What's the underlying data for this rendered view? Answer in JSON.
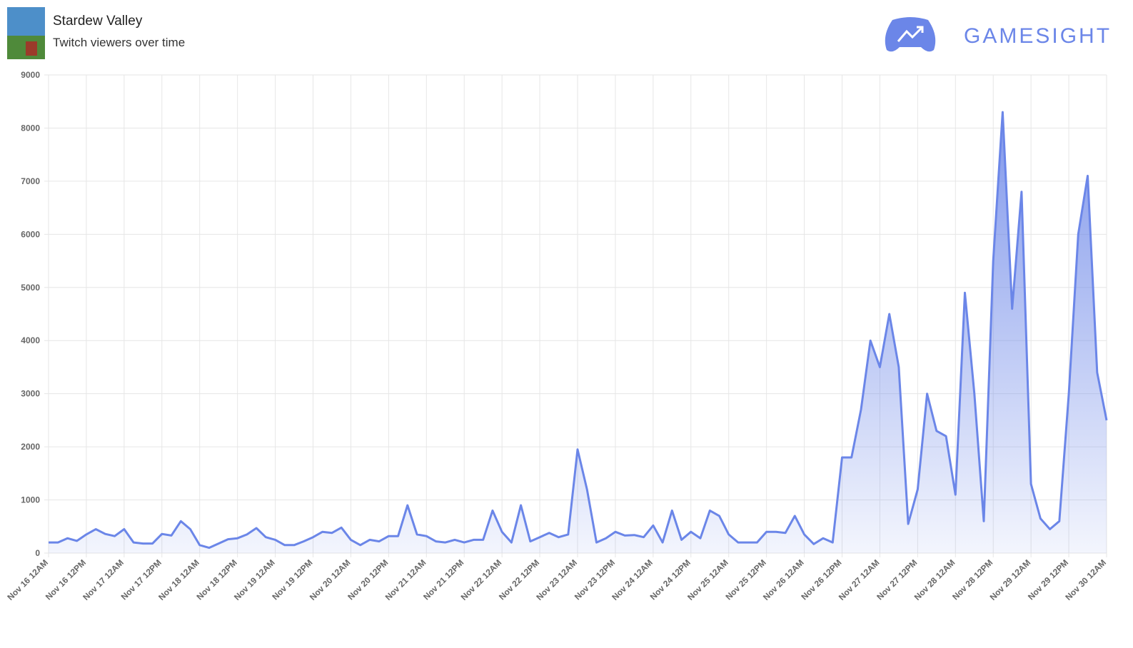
{
  "header": {
    "title": "Stardew Valley",
    "subtitle": "Twitch viewers over time",
    "logo": "GAMESIGHT"
  },
  "chart_data": {
    "type": "area",
    "color": "#6b86e8",
    "categories": [
      "Nov 16 12AM",
      null,
      null,
      null,
      "Nov 16 12PM",
      null,
      null,
      null,
      "Nov 17 12AM",
      null,
      null,
      null,
      "Nov 17 12PM",
      null,
      null,
      null,
      "Nov 18 12AM",
      null,
      null,
      null,
      "Nov 18 12PM",
      null,
      null,
      null,
      "Nov 19 12AM",
      null,
      null,
      null,
      "Nov 19 12PM",
      null,
      null,
      null,
      "Nov 20 12AM",
      null,
      null,
      null,
      "Nov 20 12PM",
      null,
      null,
      null,
      "Nov 21 12AM",
      null,
      null,
      null,
      "Nov 21 12PM",
      null,
      null,
      null,
      "Nov 22 12AM",
      null,
      null,
      null,
      "Nov 22 12PM",
      null,
      null,
      null,
      "Nov 23 12AM",
      null,
      null,
      null,
      "Nov 23 12PM",
      null,
      null,
      null,
      "Nov 24 12AM",
      null,
      null,
      null,
      "Nov 24 12PM",
      null,
      null,
      null,
      "Nov 25 12AM",
      null,
      null,
      null,
      "Nov 25 12PM",
      null,
      null,
      null,
      "Nov 26 12AM",
      null,
      null,
      null,
      "Nov 26 12PM",
      null,
      null,
      null,
      "Nov 27 12AM",
      null,
      null,
      null,
      "Nov 27 12PM",
      null,
      null,
      null,
      "Nov 28 12AM",
      null,
      null,
      null,
      "Nov 28 12PM",
      null,
      null,
      null,
      "Nov 29 12AM",
      null,
      null,
      null,
      "Nov 29 12PM",
      null,
      null,
      null,
      "Nov 30 12AM"
    ],
    "values": [
      200,
      200,
      280,
      230,
      350,
      450,
      360,
      320,
      450,
      200,
      180,
      180,
      360,
      330,
      600,
      450,
      150,
      100,
      180,
      260,
      280,
      350,
      470,
      300,
      250,
      150,
      150,
      220,
      300,
      400,
      380,
      480,
      250,
      150,
      250,
      220,
      320,
      320,
      900,
      350,
      320,
      220,
      200,
      250,
      200,
      250,
      250,
      800,
      400,
      200,
      900,
      220,
      300,
      380,
      300,
      350,
      1950,
      1200,
      200,
      280,
      400,
      330,
      340,
      300,
      520,
      200,
      800,
      250,
      400,
      280,
      800,
      700,
      350,
      200,
      200,
      200,
      400,
      400,
      380,
      700,
      350,
      170,
      280,
      200,
      1800,
      1800,
      2700,
      4000,
      3500,
      4500,
      3500,
      550,
      1200,
      3000,
      2300,
      2200,
      1100,
      4900,
      3000,
      600,
      5500,
      8300,
      4600,
      6800,
      1300,
      650,
      450,
      600,
      3000,
      6000,
      7100,
      3400,
      2500
    ],
    "ylim": [
      0,
      9000
    ],
    "yticks": [
      0,
      1000,
      2000,
      3000,
      4000,
      5000,
      6000,
      7000,
      8000,
      9000
    ],
    "grid": true
  }
}
